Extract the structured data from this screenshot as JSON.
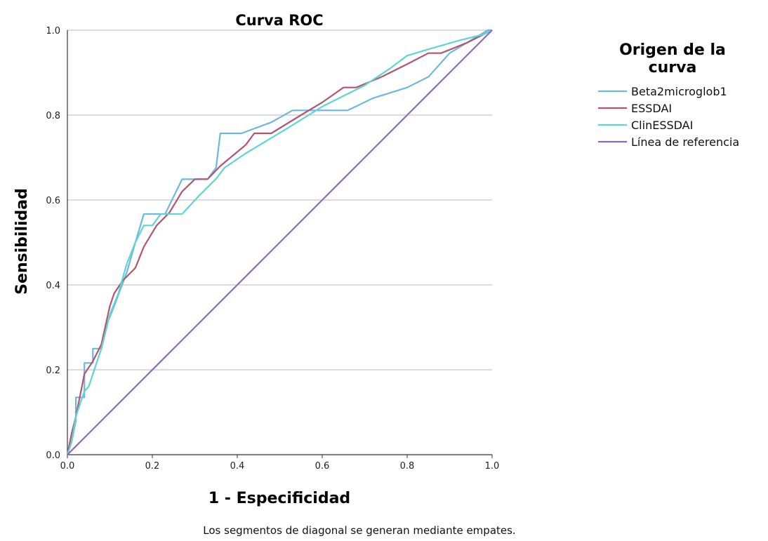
{
  "chart_data": {
    "type": "line",
    "title": "Curva ROC",
    "xlabel": "1 - Especificidad",
    "ylabel": "Sensibilidad",
    "xlim": [
      0,
      1
    ],
    "ylim": [
      0,
      1
    ],
    "xticks": [
      "0.0",
      "0.2",
      "0.4",
      "0.6",
      "0.8",
      "1.0"
    ],
    "yticks": [
      "0.0",
      "0.2",
      "0.4",
      "0.6",
      "0.8",
      "1.0"
    ],
    "grid": "horizontal",
    "legend": {
      "title_line1": "Origen de la",
      "title_line2": "curva",
      "placement": "right"
    },
    "footnote": "Los segmentos de diagonal se generan mediante empates.",
    "series": [
      {
        "name": "Beta2microglob1",
        "color": "#6db8e0",
        "points": [
          [
            0,
            0
          ],
          [
            0.01,
            0.03
          ],
          [
            0.02,
            0.08
          ],
          [
            0.02,
            0.135
          ],
          [
            0.04,
            0.135
          ],
          [
            0.04,
            0.216
          ],
          [
            0.06,
            0.216
          ],
          [
            0.06,
            0.25
          ],
          [
            0.08,
            0.25
          ],
          [
            0.09,
            0.3
          ],
          [
            0.11,
            0.35
          ],
          [
            0.14,
            0.43
          ],
          [
            0.16,
            0.5
          ],
          [
            0.18,
            0.567
          ],
          [
            0.23,
            0.567
          ],
          [
            0.27,
            0.649
          ],
          [
            0.33,
            0.649
          ],
          [
            0.35,
            0.676
          ],
          [
            0.36,
            0.757
          ],
          [
            0.41,
            0.757
          ],
          [
            0.48,
            0.783
          ],
          [
            0.53,
            0.811
          ],
          [
            0.66,
            0.811
          ],
          [
            0.72,
            0.84
          ],
          [
            0.8,
            0.865
          ],
          [
            0.85,
            0.89
          ],
          [
            0.9,
            0.946
          ],
          [
            0.99,
            1.0
          ],
          [
            1.0,
            1.0
          ]
        ]
      },
      {
        "name": "ESSDAI",
        "color": "#b5546e",
        "points": [
          [
            0,
            0
          ],
          [
            0.01,
            0.05
          ],
          [
            0.02,
            0.09
          ],
          [
            0.03,
            0.14
          ],
          [
            0.04,
            0.19
          ],
          [
            0.06,
            0.22
          ],
          [
            0.08,
            0.26
          ],
          [
            0.1,
            0.35
          ],
          [
            0.11,
            0.38
          ],
          [
            0.13,
            0.41
          ],
          [
            0.15,
            0.43
          ],
          [
            0.16,
            0.44
          ],
          [
            0.18,
            0.49
          ],
          [
            0.21,
            0.54
          ],
          [
            0.24,
            0.57
          ],
          [
            0.27,
            0.62
          ],
          [
            0.3,
            0.649
          ],
          [
            0.33,
            0.649
          ],
          [
            0.36,
            0.68
          ],
          [
            0.42,
            0.73
          ],
          [
            0.44,
            0.757
          ],
          [
            0.48,
            0.757
          ],
          [
            0.55,
            0.8
          ],
          [
            0.6,
            0.83
          ],
          [
            0.65,
            0.865
          ],
          [
            0.68,
            0.865
          ],
          [
            0.74,
            0.89
          ],
          [
            0.8,
            0.92
          ],
          [
            0.85,
            0.946
          ],
          [
            0.88,
            0.946
          ],
          [
            0.94,
            0.97
          ],
          [
            1.0,
            1.0
          ]
        ]
      },
      {
        "name": "ClinESSDAI",
        "color": "#5dd4d8",
        "points": [
          [
            0,
            0
          ],
          [
            0.01,
            0.03
          ],
          [
            0.02,
            0.09
          ],
          [
            0.04,
            0.15
          ],
          [
            0.05,
            0.16
          ],
          [
            0.06,
            0.19
          ],
          [
            0.08,
            0.25
          ],
          [
            0.1,
            0.33
          ],
          [
            0.12,
            0.38
          ],
          [
            0.14,
            0.45
          ],
          [
            0.16,
            0.5
          ],
          [
            0.18,
            0.54
          ],
          [
            0.2,
            0.54
          ],
          [
            0.22,
            0.567
          ],
          [
            0.27,
            0.567
          ],
          [
            0.31,
            0.61
          ],
          [
            0.35,
            0.65
          ],
          [
            0.37,
            0.676
          ],
          [
            0.42,
            0.71
          ],
          [
            0.47,
            0.74
          ],
          [
            0.52,
            0.77
          ],
          [
            0.6,
            0.82
          ],
          [
            0.7,
            0.87
          ],
          [
            0.76,
            0.91
          ],
          [
            0.8,
            0.94
          ],
          [
            0.85,
            0.955
          ],
          [
            0.92,
            0.975
          ],
          [
            0.98,
            0.99
          ],
          [
            1.0,
            1.0
          ]
        ]
      },
      {
        "name": "Línea de referencia",
        "color": "#8a6bbf",
        "points": [
          [
            0,
            0
          ],
          [
            1,
            1
          ]
        ]
      }
    ]
  }
}
